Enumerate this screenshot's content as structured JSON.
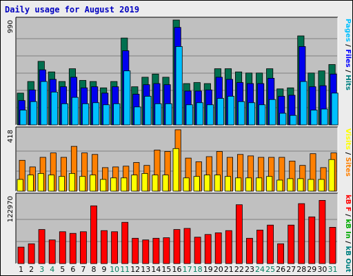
{
  "title": "Daily usage for August 2019",
  "chart_data": {
    "type": "bar",
    "title": "Daily usage for August 2019",
    "categories": [
      "1",
      "2",
      "3",
      "4",
      "5",
      "6",
      "7",
      "8",
      "9",
      "10",
      "11",
      "12",
      "13",
      "14",
      "15",
      "16",
      "17",
      "18",
      "19",
      "20",
      "21",
      "22",
      "23",
      "24",
      "25",
      "26",
      "27",
      "28",
      "29",
      "30",
      "31"
    ],
    "weekend_days": [
      "3",
      "4",
      "10",
      "11",
      "17",
      "18",
      "24",
      "25",
      "31"
    ],
    "panels": [
      {
        "id": "hits-files-pages",
        "ymax_label": "990",
        "ymax": 990,
        "right_labels": [
          {
            "text": "Pages",
            "color": "#00c0ff"
          },
          {
            "text": " / ",
            "color": "#000000"
          },
          {
            "text": "Files",
            "color": "#0000ff"
          },
          {
            "text": " / ",
            "color": "#000000"
          },
          {
            "text": "Hits",
            "color": "#008080"
          }
        ],
        "series": [
          {
            "name": "Hits",
            "color": "#006f4f",
            "values": [
              300,
              410,
              600,
              500,
              410,
              530,
              420,
              410,
              350,
              410,
              820,
              360,
              450,
              480,
              450,
              990,
              390,
              400,
              390,
              530,
              530,
              500,
              490,
              490,
              530,
              340,
              350,
              840,
              490,
              510,
              570
            ]
          },
          {
            "name": "Files",
            "color": "#0000ee",
            "values": [
              230,
              330,
              520,
              430,
              360,
              450,
              350,
              360,
              300,
              360,
              700,
              290,
              380,
              390,
              380,
              920,
              320,
              320,
              330,
              450,
              430,
              400,
              390,
              390,
              440,
              270,
              280,
              740,
              360,
              370,
              480
            ]
          },
          {
            "name": "Pages",
            "color": "#00c0ff",
            "values": [
              140,
              220,
              410,
              310,
              200,
              260,
              200,
              210,
              190,
              200,
              510,
              170,
              270,
              200,
              200,
              740,
              190,
              210,
              190,
              250,
              270,
              220,
              210,
              190,
              240,
              110,
              90,
              410,
              140,
              150,
              300
            ]
          }
        ]
      },
      {
        "id": "visits-sites",
        "ymax_label": "418",
        "ymax": 418,
        "right_labels": [
          {
            "text": "Visits",
            "color": "#ffff00"
          },
          {
            "text": " / ",
            "color": "#000000"
          },
          {
            "text": "Sites",
            "color": "#ff8000"
          }
        ],
        "series": [
          {
            "name": "Sites",
            "color": "#ff8000",
            "values": [
              210,
              165,
              230,
              260,
              230,
              305,
              260,
              250,
              160,
              165,
              170,
              195,
              175,
              280,
              270,
              418,
              225,
              200,
              235,
              270,
              230,
              250,
              240,
              230,
              230,
              230,
              205,
              175,
              255,
              160,
              260
            ]
          },
          {
            "name": "Visits",
            "color": "#ffff00",
            "values": [
              80,
              110,
              120,
              110,
              100,
              120,
              100,
              110,
              80,
              90,
              90,
              110,
              120,
              110,
              110,
              290,
              90,
              100,
              110,
              110,
              100,
              90,
              90,
              90,
              100,
              75,
              85,
              85,
              80,
              80,
              215
            ]
          }
        ]
      },
      {
        "id": "kbf",
        "ymax_label": "122970",
        "ymax": 122970,
        "right_labels": [
          {
            "text": "kB F",
            "color": "#ff0000"
          },
          {
            "text": " / ",
            "color": "#000000"
          },
          {
            "text": "kB In",
            "color": "#00aa00"
          },
          {
            "text": " / ",
            "color": "#000000"
          },
          {
            "text": "kB Out",
            "color": "#008080"
          }
        ],
        "series": [
          {
            "name": "kB F",
            "color": "#ff0000",
            "values": [
              30000,
              36000,
              62000,
              43000,
              58000,
              55000,
              58000,
              105000,
              60000,
              58000,
              75000,
              46000,
              43000,
              46000,
              47000,
              62000,
              64000,
              48000,
              53000,
              56000,
              60000,
              107000,
              46000,
              61000,
              70000,
              36000,
              70000,
              109000,
              85000,
              115000,
              66000
            ]
          }
        ]
      }
    ]
  }
}
